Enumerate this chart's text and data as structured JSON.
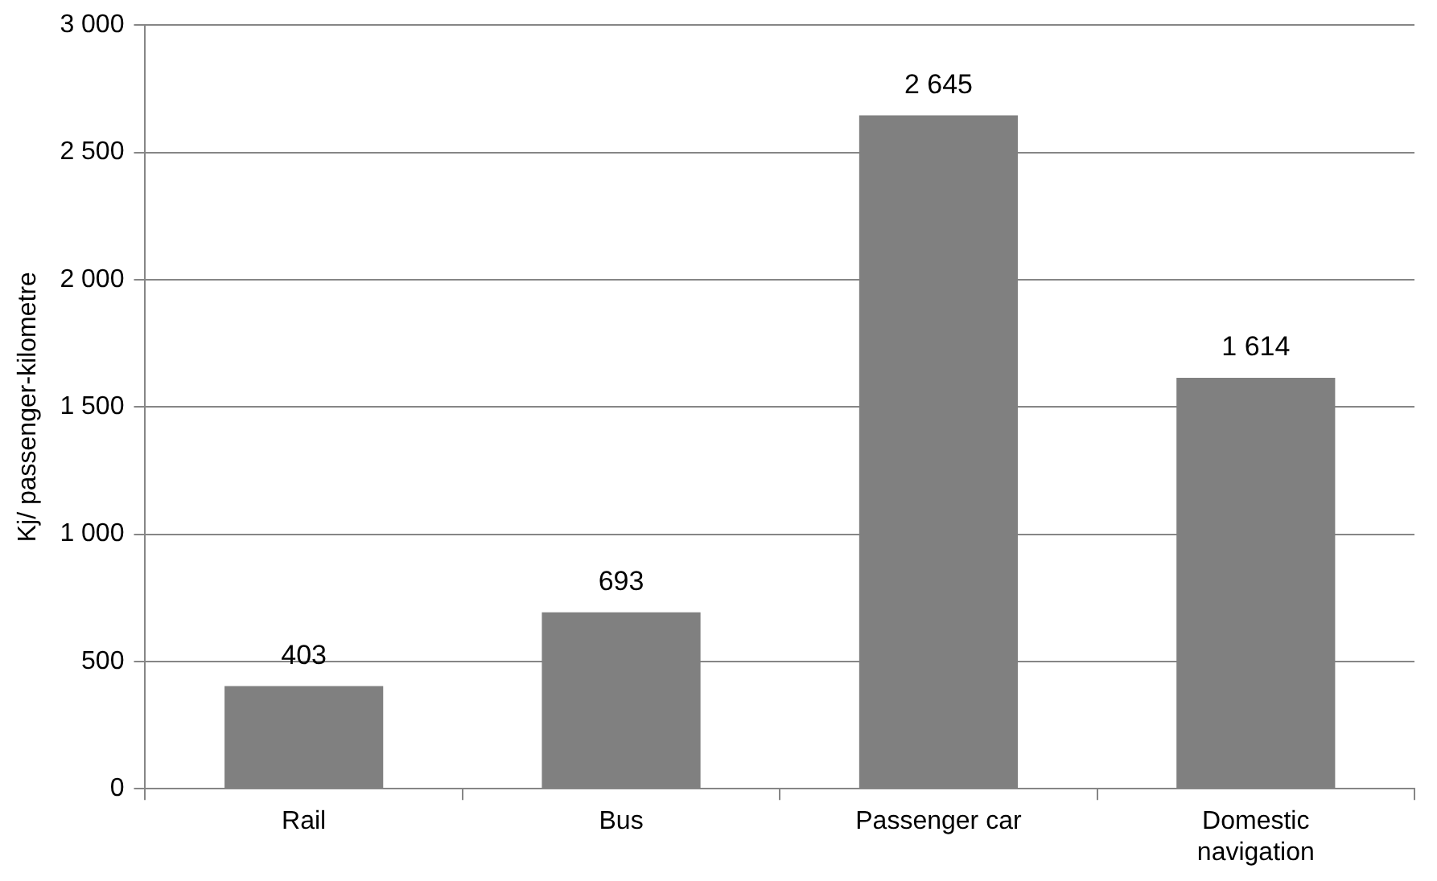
{
  "chart_data": {
    "type": "bar",
    "ylabel": "Kj/ passenger-kilometre",
    "categories": [
      "Rail",
      "Bus",
      "Passenger car",
      "Domestic navigation"
    ],
    "values": [
      403,
      693,
      2645,
      1614
    ],
    "value_labels": [
      "403",
      "693",
      "2 645",
      "1 614"
    ],
    "color": "#808080",
    "ylim": [
      0,
      3000
    ],
    "yticks": [
      {
        "value": 0,
        "label": "0"
      },
      {
        "value": 500,
        "label": "500"
      },
      {
        "value": 1000,
        "label": "1 000"
      },
      {
        "value": 1500,
        "label": "1 500"
      },
      {
        "value": 2000,
        "label": "2 000"
      },
      {
        "value": 2500,
        "label": "2 500"
      },
      {
        "value": 3000,
        "label": "3 000"
      }
    ],
    "grid": "y",
    "legend": false
  }
}
